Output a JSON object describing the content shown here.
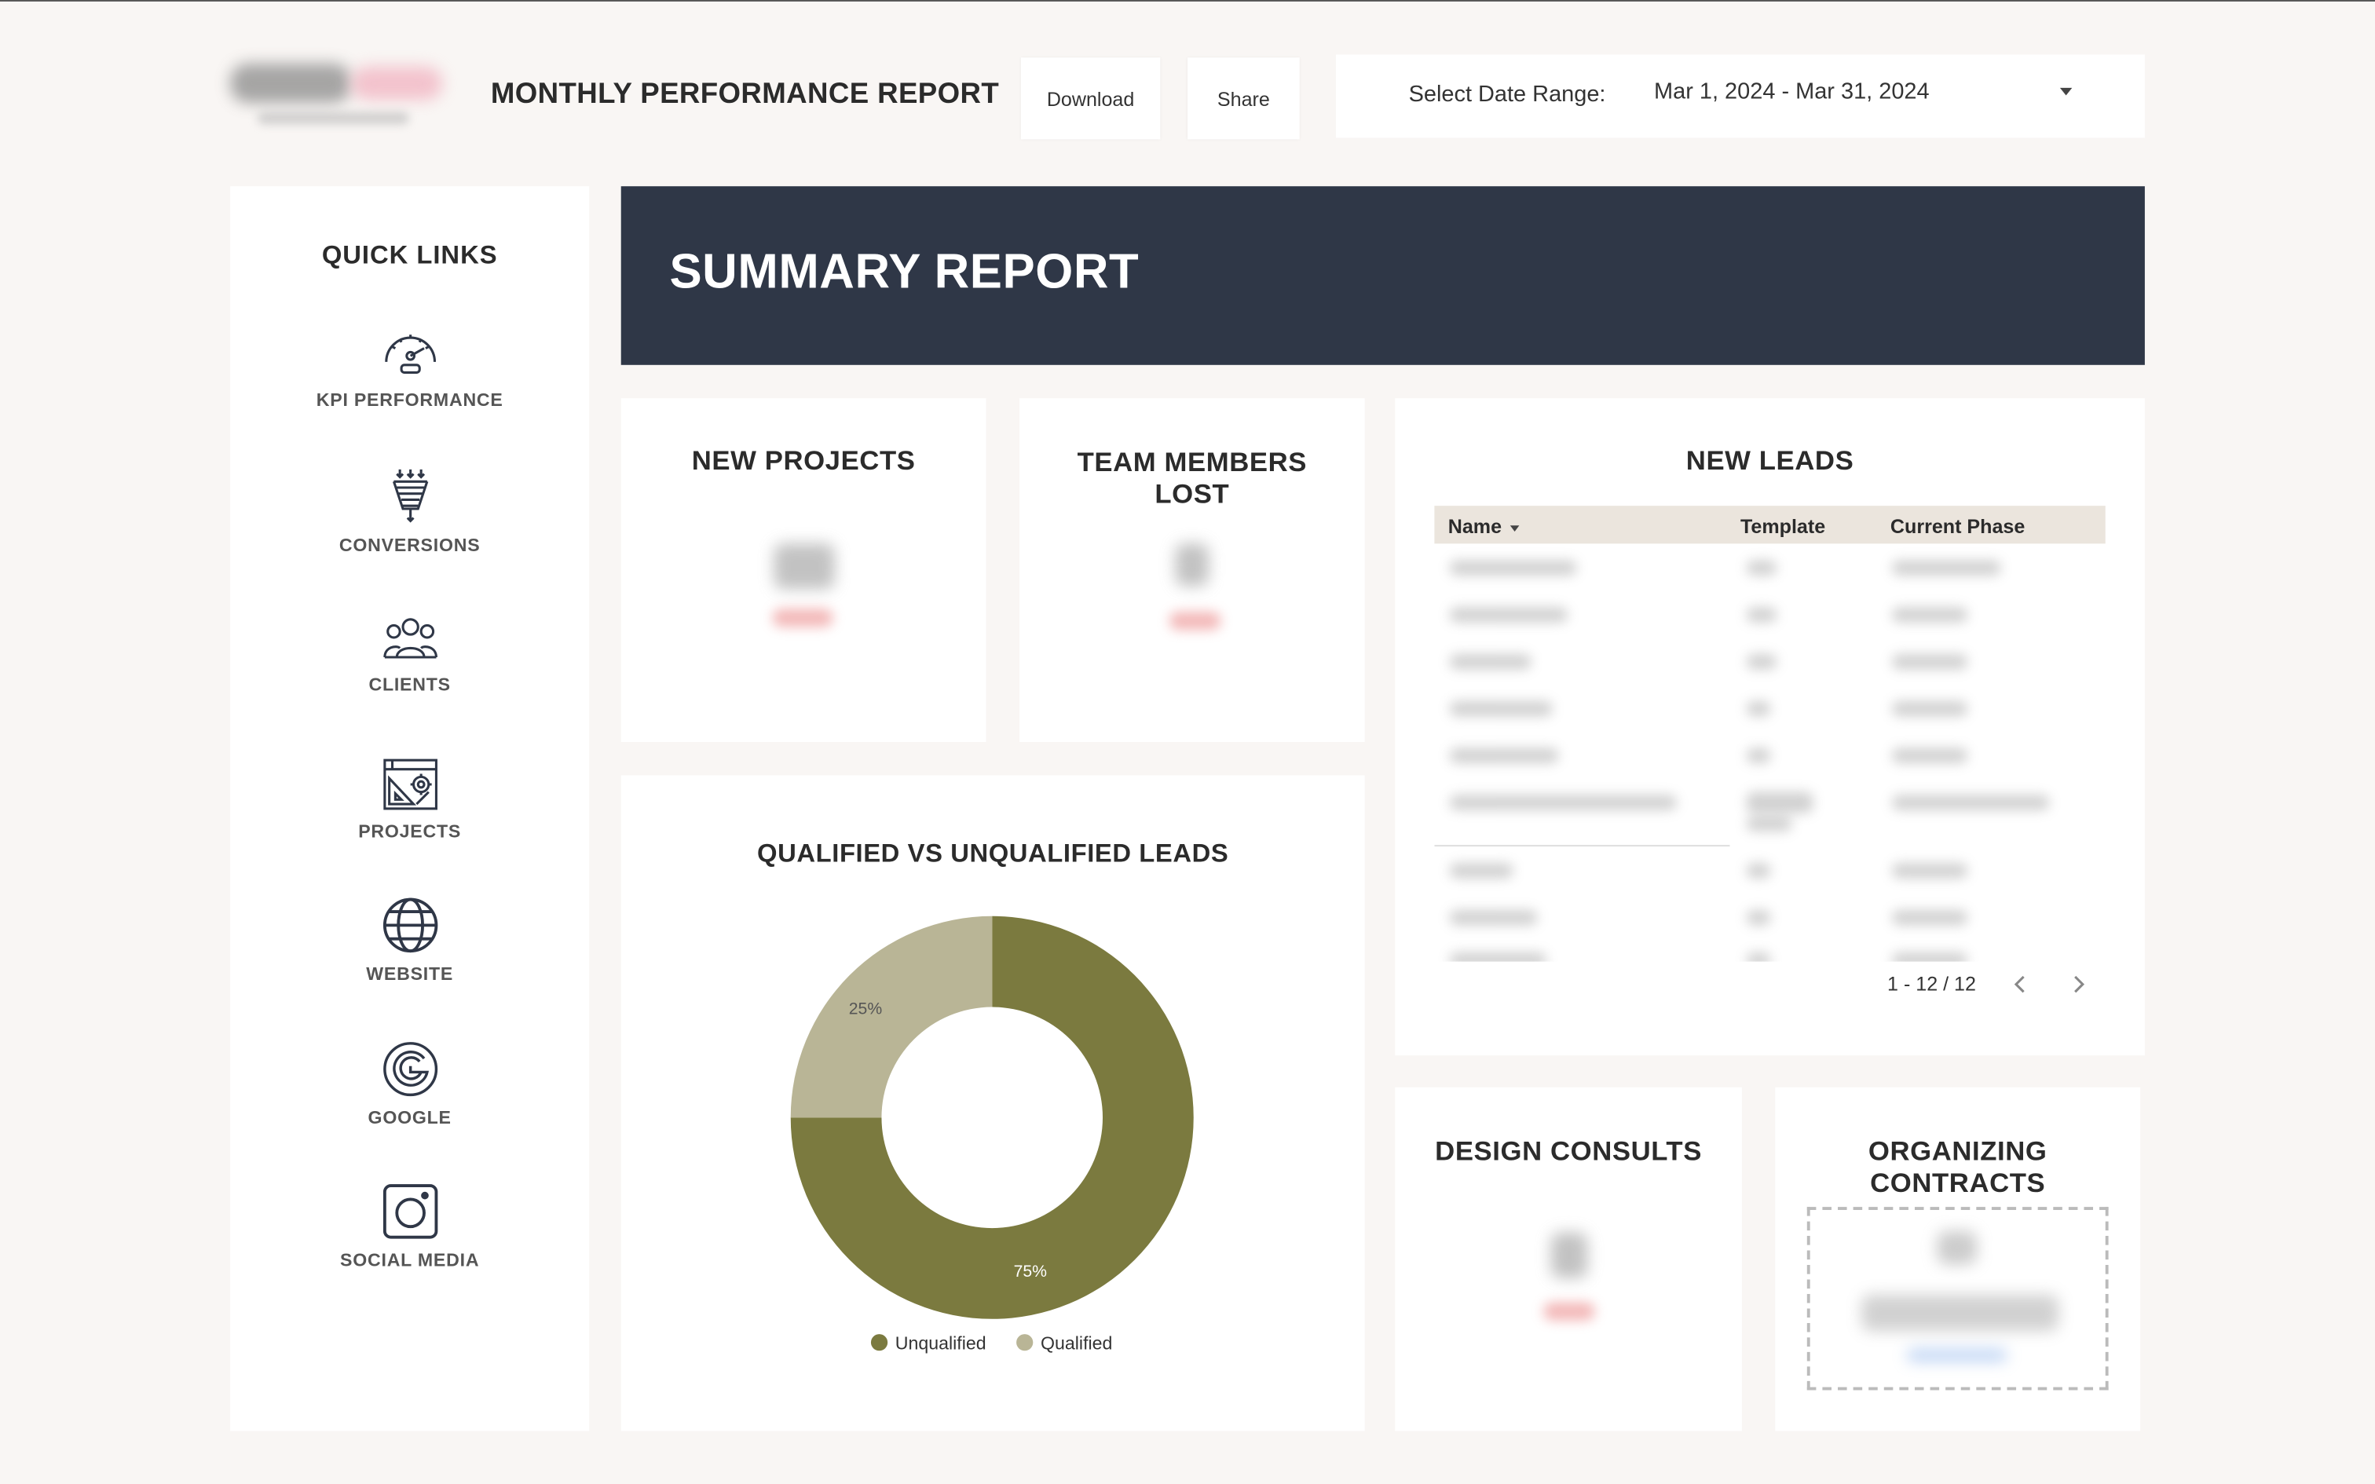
{
  "header": {
    "report_title": "MONTHLY PERFORMANCE REPORT",
    "download_label": "Download",
    "share_label": "Share",
    "date_range_label": "Select Date Range:",
    "date_range_value": "Mar 1, 2024 - Mar 31, 2024"
  },
  "sidebar": {
    "title": "QUICK LINKS",
    "items": [
      {
        "label": "KPI PERFORMANCE",
        "icon": "speedometer-icon"
      },
      {
        "label": "CONVERSIONS",
        "icon": "funnel-icon"
      },
      {
        "label": "CLIENTS",
        "icon": "people-icon"
      },
      {
        "label": "PROJECTS",
        "icon": "blueprint-gear-icon"
      },
      {
        "label": "WEBSITE",
        "icon": "globe-icon"
      },
      {
        "label": "GOOGLE",
        "icon": "google-icon"
      },
      {
        "label": "SOCIAL MEDIA",
        "icon": "instagram-icon"
      }
    ]
  },
  "banner": {
    "title": "SUMMARY REPORT"
  },
  "kpis": {
    "new_projects": {
      "title": "NEW PROJECTS"
    },
    "team_members_lost": {
      "title_line1": "TEAM MEMBERS",
      "title_line2": "LOST"
    },
    "design_consults": {
      "title": "DESIGN CONSULTS"
    },
    "organizing_contracts": {
      "title_line1": "ORGANIZING",
      "title_line2": "CONTRACTS"
    }
  },
  "new_leads": {
    "title": "NEW LEADS",
    "columns": [
      "Name",
      "Template",
      "Current Phase"
    ],
    "pager": "1 - 12 / 12"
  },
  "chart_data": {
    "type": "pie",
    "title": "QUALIFIED VS UNQUALIFIED LEADS",
    "categories": [
      "Unqualified",
      "Qualified"
    ],
    "values": [
      75,
      25
    ],
    "value_labels": [
      "75%",
      "25%"
    ],
    "colors": [
      "#7b7a3f",
      "#b9b596"
    ],
    "legend": "bottom"
  }
}
